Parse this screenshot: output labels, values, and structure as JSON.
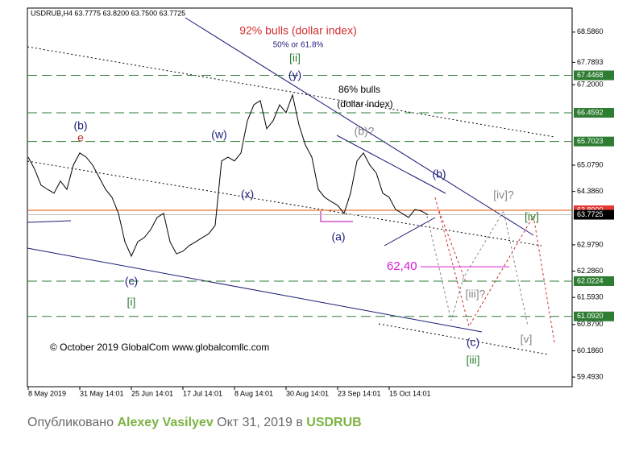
{
  "chart_data": {
    "type": "line",
    "title": "USDRUB,H4 63.7775 63.8200 63.7500 63.7725",
    "color": "#000000",
    "categories": [
      "8 May 2019",
      null,
      null,
      null,
      null,
      null,
      null,
      null,
      "31 May 14:01",
      null,
      null,
      null,
      null,
      null,
      null,
      null,
      "25 Jun 14:01",
      null,
      null,
      null,
      null,
      null,
      null,
      null,
      "17 Jul 14:01",
      null,
      null,
      null,
      null,
      null,
      null,
      null,
      "8 Aug 14:01",
      null,
      null,
      null,
      null,
      null,
      null,
      null,
      "30 Aug 14:01",
      null,
      null,
      null,
      null,
      null,
      null,
      null,
      "23 Sep 14:01",
      null,
      null,
      null,
      null,
      null,
      null,
      null,
      "15 Oct 14:01",
      null,
      null,
      null,
      null,
      null,
      null
    ],
    "values": [
      65.29,
      64.97,
      64.55,
      64.44,
      64.34,
      64.66,
      64.44,
      65.08,
      65.4,
      65.29,
      65.08,
      64.76,
      64.44,
      64.23,
      63.81,
      63.06,
      62.68,
      63.06,
      63.17,
      63.38,
      63.7,
      63.81,
      63.06,
      62.74,
      62.81,
      62.96,
      63.06,
      63.17,
      63.27,
      63.49,
      65.19,
      65.29,
      65.19,
      65.4,
      66.25,
      66.67,
      66.78,
      66.04,
      66.25,
      66.67,
      66.46,
      66.93,
      66.14,
      65.61,
      65.29,
      64.44,
      64.23,
      64.12,
      64.02,
      63.81,
      64.34,
      65.19,
      65.4,
      65.08,
      64.87,
      64.34,
      64.23,
      63.91,
      63.81,
      63.7,
      63.91,
      63.87,
      63.7725
    ],
    "ylim": [
      59.24,
      69.22
    ],
    "yticks": [
      {
        "value": 68.586,
        "label": "68.5860"
      },
      {
        "value": 67.7893,
        "label": "67.7893"
      },
      {
        "value": 67.2,
        "label": "67.2000"
      },
      {
        "value": 65.079,
        "label": "65.0790"
      },
      {
        "value": 64.386,
        "label": "64.3860"
      },
      {
        "value": 62.979,
        "label": "62.9790"
      },
      {
        "value": 62.286,
        "label": "62.2860"
      },
      {
        "value": 61.593,
        "label": "61.5930"
      },
      {
        "value": 60.879,
        "label": "60.8790"
      },
      {
        "value": 60.186,
        "label": "60.1860"
      },
      {
        "value": 59.493,
        "label": "59.4930"
      }
    ],
    "levels": [
      {
        "value": 67.4468,
        "label": "67.4468"
      },
      {
        "value": 66.4592,
        "label": "66.4592"
      },
      {
        "value": 65.7023,
        "label": "65.7023"
      },
      {
        "value": 62.0224,
        "label": "62.0224"
      },
      {
        "value": 61.092,
        "label": "61.0920"
      }
    ],
    "level_color": "#2e7d32",
    "resistance": {
      "value": 63.89,
      "label": "63.8900"
    },
    "last_price": {
      "value": 63.7725,
      "label": "63.7725"
    },
    "target": {
      "value": 62.4,
      "label": "62,40"
    },
    "annotations": [
      "92% bulls  (dollar index)",
      "50% or 61.8%",
      "[ii]",
      "(y)",
      "86% bulls",
      "(dollar index)",
      "(b)",
      "e",
      "(w)",
      "(x)",
      "(b)?",
      "(b)",
      "[iv]?",
      "[iv]",
      "(a)",
      "(c)",
      "[i]",
      "[iii]?",
      "[v]",
      "(c)",
      "[iii]",
      "© October 2019 GlobalCom www.globalcomllc.com"
    ]
  },
  "footer": {
    "prefix": "Опубликовано",
    "author": "Alexey Vasilyev",
    "date": "Окт 31, 2019",
    "in": "в",
    "symbol": "USDRUB"
  }
}
